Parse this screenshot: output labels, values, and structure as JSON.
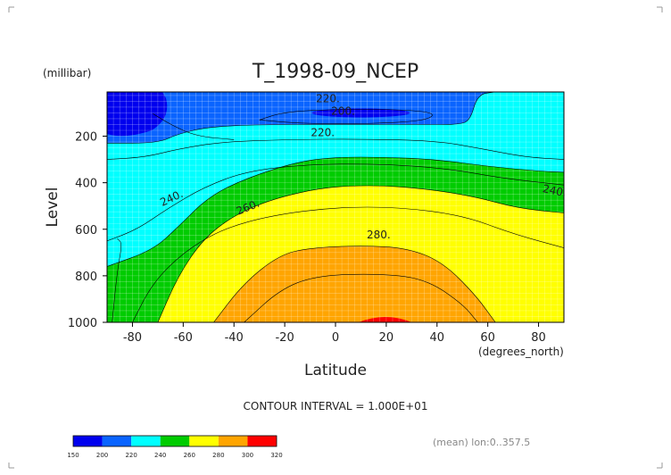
{
  "chart_data": {
    "type": "heatmap",
    "title": "T_1998-09_NCEP",
    "xlabel": "Latitude",
    "ylabel": "Level",
    "x_units": "(degrees_north)",
    "y_units": "(millibar)",
    "xlim": [
      -90,
      90
    ],
    "ylim": [
      1000,
      10
    ],
    "x_ticks": [
      -80,
      -60,
      -40,
      -20,
      0,
      20,
      40,
      60,
      80
    ],
    "y_ticks": [
      1000,
      800,
      600,
      400,
      200
    ],
    "grid": true,
    "contour_interval_text": "CONTOUR INTERVAL = 1.000E+01",
    "footnote": "(mean) lon:0..357.5",
    "contour_labels": [
      "220.",
      "200.",
      "220.",
      "240.",
      "260.",
      "280.",
      "240."
    ],
    "colorbar": {
      "boundaries": [
        "150",
        "200",
        "220",
        "240",
        "260",
        "280",
        "300",
        "320"
      ],
      "colors": [
        "#0000ee",
        "#0a64ff",
        "#00ffff",
        "#00cc00",
        "#ffff00",
        "#ffa500",
        "#ff0000"
      ]
    },
    "regions": [
      {
        "range": "200-220",
        "color": "#0a64ff",
        "boundary_lower": [
          [
            -90,
            230
          ],
          [
            -70,
            230
          ],
          [
            -62,
            190
          ],
          [
            -50,
            160
          ],
          [
            -30,
            150
          ],
          [
            0,
            150
          ],
          [
            35,
            150
          ],
          [
            48,
            150
          ],
          [
            53,
            135
          ],
          [
            56,
            20
          ],
          [
            63,
            10
          ]
        ],
        "boundary_upper": []
      },
      {
        "range": "220-240",
        "color": "#00ffff"
      },
      {
        "range": "240-260",
        "color": "#00cc00",
        "boundary": [
          [
            -90,
            760
          ],
          [
            -72,
            690
          ],
          [
            -62,
            590
          ],
          [
            -50,
            460
          ],
          [
            -35,
            380
          ],
          [
            -15,
            310
          ],
          [
            0,
            290
          ],
          [
            20,
            290
          ],
          [
            40,
            300
          ],
          [
            60,
            330
          ],
          [
            80,
            350
          ],
          [
            90,
            355
          ]
        ]
      },
      {
        "range": "260-280",
        "color": "#ffff00",
        "boundary": [
          [
            -70,
            1000
          ],
          [
            -62,
            800
          ],
          [
            -52,
            640
          ],
          [
            -40,
            540
          ],
          [
            -25,
            470
          ],
          [
            -5,
            420
          ],
          [
            15,
            410
          ],
          [
            35,
            425
          ],
          [
            55,
            460
          ],
          [
            72,
            510
          ],
          [
            90,
            530
          ]
        ]
      },
      {
        "range": "280-300",
        "color": "#ffa500",
        "boundary": [
          [
            -48,
            1000
          ],
          [
            -36,
            830
          ],
          [
            -22,
            710
          ],
          [
            -10,
            680
          ],
          [
            10,
            670
          ],
          [
            28,
            680
          ],
          [
            42,
            740
          ],
          [
            55,
            880
          ],
          [
            63,
            1000
          ]
        ]
      },
      {
        "range": ">300",
        "color": "#ff0000",
        "center_lat": 20
      }
    ]
  }
}
